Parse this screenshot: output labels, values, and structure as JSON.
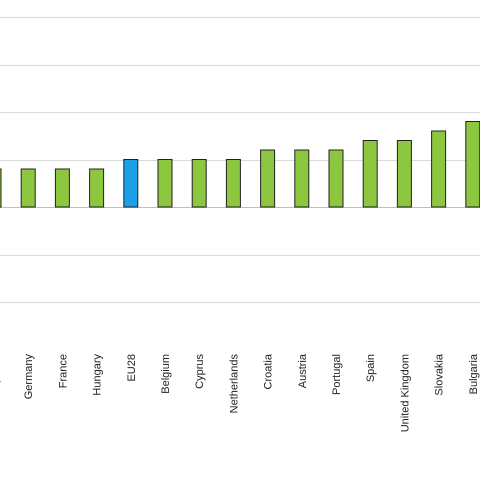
{
  "chart_data": {
    "type": "bar",
    "categories": [
      "Czech Republic",
      "Germany",
      "France",
      "Hungary",
      "EU28",
      "Belgium",
      "Cyprus",
      "Netherlands",
      "Croatia",
      "Austria",
      "Portugal",
      "Spain",
      "United Kingdom",
      "Slovakia",
      "Bulgaria"
    ],
    "values": [
      0.8,
      0.8,
      0.8,
      0.8,
      1.0,
      1.0,
      1.0,
      1.0,
      1.2,
      1.2,
      1.2,
      1.4,
      1.4,
      1.6,
      1.8
    ],
    "highlight": [
      "EU28"
    ],
    "colors": {
      "bar": "#8dc63f",
      "highlight": "#1aa0e6",
      "bar_stroke": "#222222",
      "grid": "#d9d9d9"
    },
    "ylim": [
      -2.0,
      4.0
    ],
    "gridlines": [
      -2.0,
      -1.0,
      0.0,
      1.0,
      2.0,
      3.0,
      4.0
    ],
    "grid": true,
    "legend": "none"
  }
}
